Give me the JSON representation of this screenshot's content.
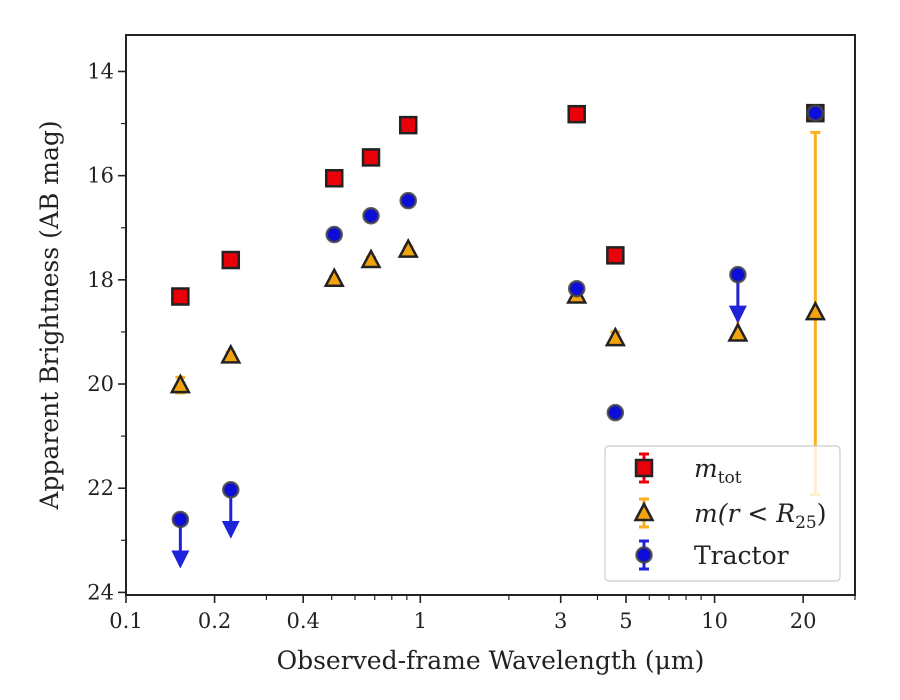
{
  "chart_data": {
    "type": "scatter",
    "title": "",
    "xlabel": "Observed-frame Wavelength (μm)",
    "ylabel": "Apparent Brightness (AB mag)",
    "xscale": "log",
    "xlim": [
      0.1,
      30
    ],
    "ylim": [
      24.05,
      13.3
    ],
    "y_inverted": true,
    "grid": false,
    "legend_position": "lower-right",
    "x_ticks": [
      {
        "value": 0.1,
        "label": "0.1"
      },
      {
        "value": 0.2,
        "label": "0.2"
      },
      {
        "value": 0.4,
        "label": "0.4"
      },
      {
        "value": 1,
        "label": "1"
      },
      {
        "value": 3,
        "label": "3"
      },
      {
        "value": 5,
        "label": "5"
      },
      {
        "value": 10,
        "label": "10"
      },
      {
        "value": 20,
        "label": "20"
      }
    ],
    "x_minor_ticks": [
      0.3,
      0.5,
      0.6,
      0.7,
      0.8,
      0.9,
      2,
      4,
      6,
      7,
      8,
      9,
      30
    ],
    "y_ticks": [
      {
        "value": 14,
        "label": "14"
      },
      {
        "value": 16,
        "label": "16"
      },
      {
        "value": 18,
        "label": "18"
      },
      {
        "value": 20,
        "label": "20"
      },
      {
        "value": 22,
        "label": "22"
      },
      {
        "value": 24,
        "label": "24"
      }
    ],
    "y_minor_ticks": [
      15,
      17,
      19,
      21,
      23
    ],
    "series": [
      {
        "key": "mtot",
        "name_main": "m",
        "name_sub": "tot",
        "marker": "square",
        "color": "#e8000b",
        "errcolor": "#e8000b",
        "points": [
          {
            "x": 0.153,
            "y": 18.32,
            "err": 0.08
          },
          {
            "x": 0.227,
            "y": 17.62,
            "err": 0.06
          },
          {
            "x": 0.51,
            "y": 16.05,
            "err": 0.05
          },
          {
            "x": 0.68,
            "y": 15.65,
            "err": 0.05
          },
          {
            "x": 0.91,
            "y": 15.03,
            "err": 0.05
          },
          {
            "x": 3.4,
            "y": 14.82,
            "err": 0.05
          },
          {
            "x": 4.6,
            "y": 17.53,
            "err": 0.05
          },
          {
            "x": 22.0,
            "y": 14.8,
            "err": 0.05
          }
        ]
      },
      {
        "key": "mr25",
        "name_main": "m(r < R",
        "name_sub": "25",
        "name_tail": ")",
        "marker": "triangle",
        "color": "#f1a30d",
        "errcolor": "#fbb023",
        "points": [
          {
            "x": 0.153,
            "y": 20.02,
            "err": 0.15
          },
          {
            "x": 0.227,
            "y": 19.45,
            "err": 0.06
          },
          {
            "x": 0.51,
            "y": 17.98,
            "err": 0.05
          },
          {
            "x": 0.68,
            "y": 17.62,
            "err": 0.05
          },
          {
            "x": 0.91,
            "y": 17.42,
            "err": 0.05
          },
          {
            "x": 3.4,
            "y": 18.3,
            "err": 0.05
          },
          {
            "x": 4.6,
            "y": 19.12,
            "err": 0.12
          },
          {
            "x": 12.0,
            "y": 19.03,
            "err_low": 0.0,
            "err_high": 1.1
          },
          {
            "x": 22.0,
            "y": 18.62,
            "err_low": 3.5,
            "err_high": 3.45
          }
        ]
      },
      {
        "key": "tractor",
        "name_main": "Tractor",
        "marker": "circle",
        "color": "#0d0dda",
        "errcolor": "#1f23d9",
        "points": [
          {
            "x": 0.153,
            "y": 22.6,
            "upper_limit": true
          },
          {
            "x": 0.227,
            "y": 22.03,
            "upper_limit": true
          },
          {
            "x": 0.51,
            "y": 17.13
          },
          {
            "x": 0.68,
            "y": 16.77
          },
          {
            "x": 0.91,
            "y": 16.48
          },
          {
            "x": 3.4,
            "y": 18.17
          },
          {
            "x": 4.6,
            "y": 20.55
          },
          {
            "x": 12.0,
            "y": 17.9,
            "upper_limit": true
          },
          {
            "x": 22.0,
            "y": 14.8
          }
        ]
      }
    ]
  }
}
